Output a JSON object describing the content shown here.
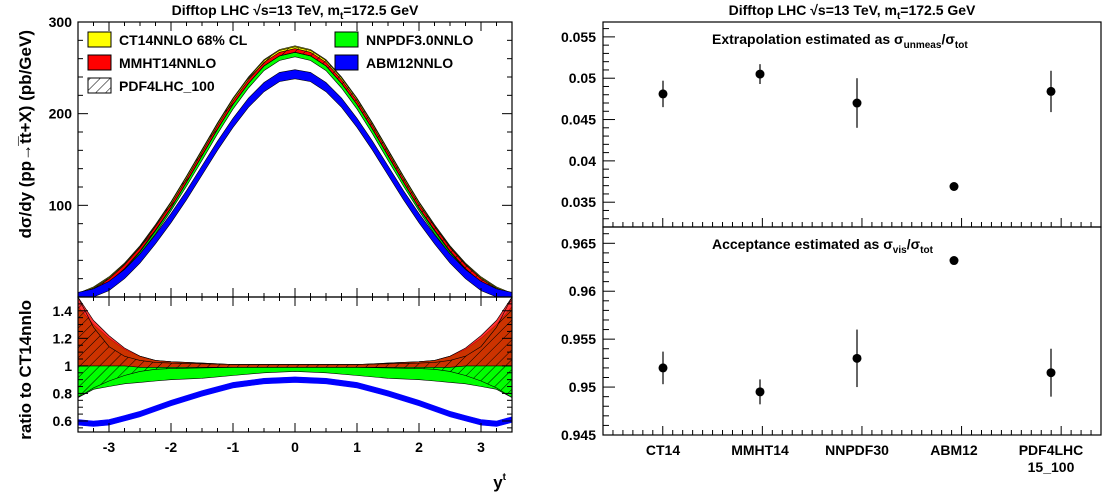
{
  "chart_data": [
    {
      "type": "line",
      "panel": "cross-section",
      "title": "Difftop LHC √s=13 TeV, m_t=172.5 GeV",
      "title_parts": [
        "Difftop LHC ",
        "√s=13 TeV, m",
        "t",
        "=172.5 GeV"
      ],
      "ylabel": "dσ/dy (pp→t̅t+X) (pb/GeV)",
      "xlim": [
        -3.5,
        3.5
      ],
      "ylim": [
        0,
        300
      ],
      "yticks": [
        "100",
        "200",
        "300"
      ],
      "grid": false,
      "legend_position": "top",
      "legend": [
        "CT14NNLO 68% CL",
        "MMHT14NNLO",
        "PDF4LHC_100",
        "NNPDF3.0NNLO",
        "ABM12NNLO"
      ],
      "x": [
        -3.5,
        -3.25,
        -3,
        -2.75,
        -2.5,
        -2.25,
        -2,
        -1.75,
        -1.5,
        -1.25,
        -1,
        -0.75,
        -0.5,
        -0.25,
        0,
        0.25,
        0.5,
        0.75,
        1,
        1.25,
        1.5,
        1.75,
        2,
        2.25,
        2.5,
        2.75,
        3,
        3.25,
        3.5
      ],
      "series": [
        {
          "name": "CT14NNLO 68% CL",
          "color": "#ffff00",
          "values": [
            0,
            7,
            18,
            33,
            52,
            75,
            100,
            128,
            157,
            186,
            213,
            236,
            255,
            266,
            270,
            266,
            255,
            236,
            213,
            186,
            157,
            128,
            100,
            75,
            52,
            33,
            18,
            7,
            0
          ],
          "band": 4
        },
        {
          "name": "NNPDF3.0NNLO",
          "color": "#00ff00",
          "values": [
            0,
            6,
            16,
            31,
            50,
            72,
            97,
            124,
            152,
            181,
            208,
            231,
            250,
            261,
            265,
            261,
            250,
            231,
            208,
            181,
            152,
            124,
            97,
            72,
            50,
            31,
            16,
            6,
            0
          ],
          "band": 3
        },
        {
          "name": "MMHT14NNLO",
          "color": "#ff0000",
          "values": [
            0,
            7,
            18,
            33,
            52,
            75,
            99,
            127,
            156,
            185,
            212,
            235,
            254,
            265,
            269,
            265,
            254,
            235,
            212,
            185,
            156,
            127,
            99,
            75,
            52,
            33,
            18,
            7,
            0
          ],
          "band": 2
        },
        {
          "name": "PDF4LHC_100",
          "color": "#000000",
          "values": [
            0,
            7,
            18,
            33,
            52,
            75,
            100,
            128,
            157,
            186,
            213,
            236,
            255,
            266,
            270,
            266,
            255,
            236,
            213,
            186,
            157,
            128,
            100,
            75,
            52,
            33,
            18,
            7,
            0
          ],
          "band": 3
        },
        {
          "name": "ABM12NNLO",
          "color": "#0000ff",
          "values": [
            0,
            4,
            12,
            25,
            42,
            63,
            86,
            111,
            138,
            165,
            190,
            212,
            229,
            240,
            243,
            240,
            229,
            212,
            190,
            165,
            138,
            111,
            86,
            63,
            42,
            25,
            12,
            4,
            0
          ],
          "band": 5
        }
      ]
    },
    {
      "type": "line",
      "panel": "ratio",
      "ylabel": "ratio to CT14nnlo",
      "xlabel": "y^t",
      "xlabel_parts": [
        "y",
        "t"
      ],
      "xlim": [
        -3.5,
        3.5
      ],
      "ylim": [
        0.52,
        1.5
      ],
      "xticks": [
        "-3",
        "-2",
        "-1",
        "0",
        "1",
        "2",
        "3"
      ],
      "yticks": [
        "0.6",
        "0.8",
        "1",
        "1.2",
        "1.4"
      ],
      "grid": false,
      "x": [
        -3.5,
        -3.25,
        -3,
        -2.75,
        -2.5,
        -2.25,
        -2,
        -1.5,
        -1,
        -0.5,
        0,
        0.5,
        1,
        1.5,
        2,
        2.25,
        2.5,
        2.75,
        3,
        3.25,
        3.5
      ],
      "series": [
        {
          "name": "CT14NNLO 68% CL",
          "color": "#ffff00",
          "lower": [
            0.8,
            0.86,
            0.91,
            0.95,
            0.97,
            0.98,
            0.985,
            0.99,
            0.99,
            0.99,
            0.99,
            0.99,
            0.99,
            0.99,
            0.985,
            0.98,
            0.97,
            0.95,
            0.91,
            0.86,
            0.8
          ],
          "upper": [
            1.2,
            1.14,
            1.09,
            1.05,
            1.03,
            1.02,
            1.015,
            1.01,
            1.01,
            1.01,
            1.01,
            1.01,
            1.01,
            1.01,
            1.015,
            1.02,
            1.03,
            1.05,
            1.09,
            1.14,
            1.2
          ]
        },
        {
          "name": "NNPDF3.0NNLO",
          "color": "#00ff00",
          "lower": [
            0.77,
            0.83,
            0.85,
            0.87,
            0.88,
            0.89,
            0.9,
            0.91,
            0.93,
            0.95,
            0.96,
            0.95,
            0.93,
            0.91,
            0.9,
            0.89,
            0.88,
            0.87,
            0.85,
            0.83,
            0.77
          ],
          "upper": [
            1.43,
            1.3,
            1.2,
            1.12,
            1.07,
            1.04,
            1.03,
            1.02,
            1.01,
            1.01,
            1.01,
            1.01,
            1.01,
            1.02,
            1.03,
            1.04,
            1.07,
            1.12,
            1.2,
            1.3,
            1.43
          ]
        },
        {
          "name": "MMHT14NNLO",
          "color": "#ff0000",
          "lower": [
            1.0,
            1.0,
            1.0,
            1.0,
            0.99,
            0.99,
            0.99,
            0.99,
            0.99,
            0.99,
            0.99,
            0.99,
            0.99,
            0.99,
            0.99,
            0.99,
            0.99,
            1.0,
            1.0,
            1.0,
            1.0
          ],
          "upper": [
            1.5,
            1.33,
            1.22,
            1.13,
            1.07,
            1.04,
            1.03,
            1.02,
            1.01,
            1.01,
            1.01,
            1.01,
            1.01,
            1.02,
            1.03,
            1.04,
            1.07,
            1.13,
            1.22,
            1.33,
            1.5
          ]
        },
        {
          "name": "PDF4LHC_100",
          "color": "#000000",
          "lower": [
            0.77,
            0.84,
            0.89,
            0.93,
            0.96,
            0.975,
            0.98,
            0.985,
            0.99,
            0.99,
            0.99,
            0.99,
            0.99,
            0.985,
            0.98,
            0.975,
            0.96,
            0.93,
            0.89,
            0.84,
            0.77
          ],
          "upper": [
            1.5,
            1.28,
            1.14,
            1.07,
            1.04,
            1.025,
            1.02,
            1.015,
            1.01,
            1.01,
            1.01,
            1.01,
            1.01,
            1.015,
            1.02,
            1.025,
            1.04,
            1.07,
            1.14,
            1.28,
            1.5
          ]
        },
        {
          "name": "ABM12NNLO",
          "color": "#0000ff",
          "values": [
            0.59,
            0.58,
            0.59,
            0.62,
            0.65,
            0.69,
            0.73,
            0.8,
            0.86,
            0.89,
            0.9,
            0.89,
            0.86,
            0.8,
            0.73,
            0.69,
            0.65,
            0.62,
            0.59,
            0.58,
            0.61
          ],
          "band": 0.02
        }
      ]
    },
    {
      "type": "scatter",
      "panel": "extrapolation",
      "title": "Difftop LHC √s=13 TeV, m_t=172.5 GeV",
      "title_parts": [
        "Difftop LHC ",
        "√s=13 TeV, m",
        "t",
        "=172.5 GeV"
      ],
      "annotation": "Extrapolation estimated as σ_unmeas/σ_tot",
      "annotation_parts": [
        "Extrapolation estimated as σ",
        "unmeas",
        "/σ",
        "tot"
      ],
      "categories": [
        "CT14",
        "MMHT14",
        "NNPDF30",
        "ABM12",
        "PDF4LHC 15_100"
      ],
      "values": [
        0.0481,
        0.0505,
        0.047,
        0.0369,
        0.0484
      ],
      "errors": [
        0.0016,
        0.0012,
        0.003,
        0.0,
        0.0025
      ],
      "ylim": [
        0.032,
        0.0568
      ],
      "yticks": [
        "0.035",
        "0.04",
        "0.045",
        "0.05",
        "0.055"
      ],
      "grid": false
    },
    {
      "type": "scatter",
      "panel": "acceptance",
      "annotation": "Acceptance estimated as σ_vis/σ_tot",
      "annotation_parts": [
        "Acceptance estimated as σ",
        "vis",
        "/σ",
        "tot"
      ],
      "categories": [
        "CT14",
        "MMHT14",
        "NNPDF30",
        "ABM12",
        "PDF4LHC 15_100"
      ],
      "category_lines": [
        [
          "CT14"
        ],
        [
          "MMHT14"
        ],
        [
          "NNPDF30"
        ],
        [
          "ABM12"
        ],
        [
          "PDF4LHC",
          "15_100"
        ]
      ],
      "values": [
        0.952,
        0.9495,
        0.953,
        0.9632,
        0.9515
      ],
      "errors": [
        0.0017,
        0.0013,
        0.003,
        0.0,
        0.0025
      ],
      "ylim": [
        0.945,
        0.9667
      ],
      "yticks": [
        "0.945",
        "0.95",
        "0.955",
        "0.96",
        "0.965"
      ],
      "grid": false
    }
  ]
}
